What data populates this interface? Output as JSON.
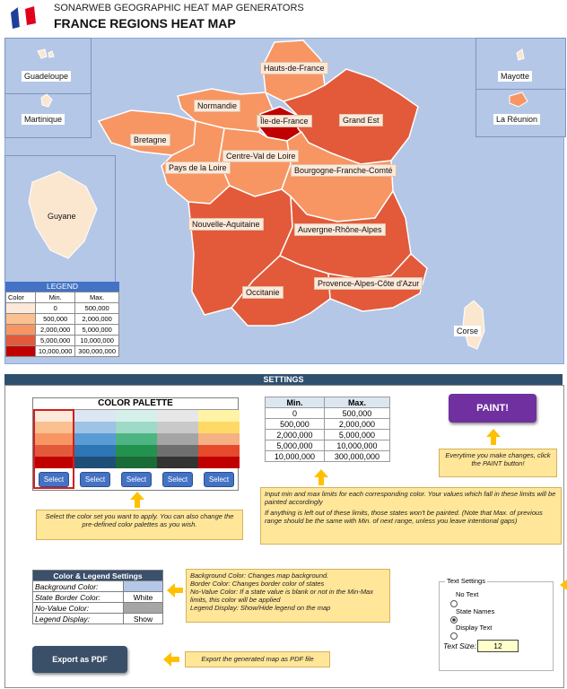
{
  "header": {
    "app_title": "SONARWEB GEOGRAPHIC HEAT MAP GENERATORS",
    "map_title": "FRANCE REGIONS HEAT MAP"
  },
  "insets": {
    "guadeloupe": "Guadeloupe",
    "martinique": "Martinique",
    "guyane": "Guyane",
    "mayotte": "Mayotte",
    "reunion": "La Réunion",
    "corse": "Corse"
  },
  "regions": {
    "hauts_de_france": "Hauts-de-France",
    "normandie": "Normandie",
    "ile_de_france": "Île-de-France",
    "grand_est": "Grand Est",
    "bretagne": "Bretagne",
    "centre_val_de_loire": "Centre-Val de Loire",
    "pays_de_la_loire": "Pays de la Loire",
    "bourgogne": "Bourgogne-Franche-Comté",
    "nouvelle_aquitaine": "Nouvelle-Aquitaine",
    "auvergne": "Auvergne-Rhône-Alpes",
    "occitanie": "Occitanie",
    "paca": "Provence-Alpes-Côte d'Azur"
  },
  "legend": {
    "title": "LEGEND",
    "col_color": "Color",
    "col_min": "Min.",
    "col_max": "Max.",
    "rows": [
      {
        "min": "0",
        "max": "500,000",
        "color": "#fde9d9"
      },
      {
        "min": "500,000",
        "max": "2,000,000",
        "color": "#fac090"
      },
      {
        "min": "2,000,000",
        "max": "5,000,000",
        "color": "#f79663"
      },
      {
        "min": "5,000,000",
        "max": "10,000,000",
        "color": "#e25a3a"
      },
      {
        "min": "10,000,000",
        "max": "300,000,000",
        "color": "#c00000"
      }
    ]
  },
  "settings": {
    "title": "SETTINGS",
    "palette_title": "COLOR PALETTE",
    "select_label": "Select",
    "palette_note": "Select the color set you want to apply. You can also change the pre-defined color palettes as you wish.",
    "minmax_head_min": "Min.",
    "minmax_head_max": "Max.",
    "minmax_rows": [
      {
        "min": "0",
        "max": "500,000"
      },
      {
        "min": "500,000",
        "max": "2,000,000"
      },
      {
        "min": "2,000,000",
        "max": "5,000,000"
      },
      {
        "min": "5,000,000",
        "max": "10,000,000"
      },
      {
        "min": "10,000,000",
        "max": "300,000,000"
      }
    ],
    "paint_label": "PAINT!",
    "paint_note": "Everytime you make changes, click the PAINT button!",
    "limits_note_1": "Input min and max limits for each corresponding color. Your values which fall in these limits will be painted accordingly",
    "limits_note_2": "If anything is left out of these limits, those states won't be painted. (Note that Max. of previous range should be the same with Min. of next range, unless you leave intentional gaps)",
    "cls_title": "Color & Legend Settings",
    "cls_bg_label": "Background Color:",
    "cls_border_label": "State Border Color:",
    "cls_border_value": "White",
    "cls_novalue_label": "No-Value Color:",
    "cls_legend_label": "Legend Display:",
    "cls_legend_value": "Show",
    "cls_note_bg": "Background Color: Changes map background.",
    "cls_note_border": "Border Color: Changes border color of states",
    "cls_note_novalue": "No-Value Color: If a state value is blank or not in the Min-Max limits, this color will be applied",
    "cls_note_legend": "Legend Display: Show/Hide legend on the map",
    "export_label": "Export as PDF",
    "export_note": "Export the generated map as PDF file",
    "text_settings_title": "Text Settings",
    "opt_no_text": "No Text",
    "opt_state_names": "State Names",
    "opt_display_text": "Display Text",
    "text_size_label": "Text Size:",
    "text_size_value": "12"
  },
  "palettes": [
    [
      "#fde9d9",
      "#fac090",
      "#f79663",
      "#e25a3a",
      "#c00000"
    ],
    [
      "#dde7f3",
      "#9dc3e6",
      "#5b9bd5",
      "#2e75b6",
      "#1f4e79"
    ],
    [
      "#d5f0ea",
      "#9fd9c7",
      "#4db584",
      "#24924f",
      "#1a6b38"
    ],
    [
      "#e7e7e7",
      "#c9c9c9",
      "#a5a5a5",
      "#6f6f6f",
      "#333333"
    ],
    [
      "#fff3a6",
      "#ffd966",
      "#f4b183",
      "#e7492b",
      "#c00000"
    ]
  ],
  "colors": {
    "map_bg": "#b4c7e7",
    "no_value": "#a6a6a6",
    "land_light": "#fbe7cf"
  }
}
